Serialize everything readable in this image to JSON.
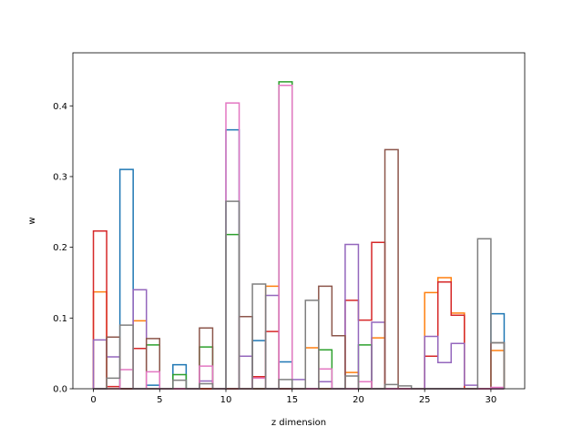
{
  "chart_data": {
    "type": "step-histogram",
    "title": "",
    "xlabel": "z dimension",
    "ylabel": "w",
    "xlim": [
      -1.55,
      32.55
    ],
    "ylim": [
      0,
      0.475
    ],
    "xticks": [
      0,
      5,
      10,
      15,
      20,
      25,
      30
    ],
    "yticks": [
      0.0,
      0.1,
      0.2,
      0.3,
      0.4
    ],
    "grid": false,
    "legend": "none",
    "bin_edges": [
      0,
      1,
      2,
      3,
      4,
      5,
      6,
      7,
      8,
      9,
      10,
      11,
      12,
      13,
      14,
      15,
      16,
      17,
      18,
      19,
      20,
      21,
      22,
      23,
      24,
      25,
      26,
      27,
      28,
      29,
      30,
      31
    ],
    "series": [
      {
        "color": "#1f77b4",
        "values": [
          0,
          0,
          0.31,
          0,
          0.005,
          0,
          0.034,
          0,
          0,
          0,
          0.366,
          0,
          0.068,
          0,
          0.038,
          0,
          0,
          0,
          0,
          0,
          0,
          0,
          0,
          0,
          0,
          0,
          0,
          0,
          0,
          0,
          0.106
        ]
      },
      {
        "color": "#ff7f0e",
        "values": [
          0.137,
          0,
          0,
          0.096,
          0,
          0,
          0,
          0,
          0,
          0,
          0,
          0,
          0,
          0.145,
          0,
          0,
          0.058,
          0,
          0,
          0.023,
          0,
          0.072,
          0,
          0,
          0,
          0.136,
          0.157,
          0.107,
          0,
          0,
          0.054
        ]
      },
      {
        "color": "#2ca02c",
        "values": [
          0,
          0,
          0,
          0,
          0.062,
          0,
          0.02,
          0,
          0.059,
          0,
          0.218,
          0,
          0,
          0,
          0.434,
          0,
          0,
          0.055,
          0,
          0,
          0.062,
          0,
          0,
          0,
          0,
          0,
          0,
          0,
          0,
          0,
          0
        ]
      },
      {
        "color": "#d62728",
        "values": [
          0.223,
          0.003,
          0,
          0.057,
          0,
          0,
          0,
          0,
          0,
          0,
          0,
          0,
          0.017,
          0.081,
          0,
          0,
          0,
          0,
          0,
          0.125,
          0.097,
          0.207,
          0,
          0,
          0,
          0.046,
          0.151,
          0.104,
          0,
          0,
          0
        ]
      },
      {
        "color": "#9467bd",
        "values": [
          0.069,
          0.045,
          0,
          0.14,
          0,
          0,
          0,
          0,
          0.011,
          0,
          0,
          0.046,
          0,
          0.132,
          0,
          0.013,
          0,
          0.01,
          0,
          0.204,
          0,
          0.094,
          0,
          0,
          0,
          0.074,
          0.037,
          0.064,
          0.005,
          0,
          0
        ]
      },
      {
        "color": "#8c564b",
        "values": [
          0,
          0.073,
          0,
          0,
          0.071,
          0,
          0,
          0,
          0.086,
          0,
          0,
          0.102,
          0,
          0,
          0,
          0,
          0,
          0.145,
          0.075,
          0,
          0,
          0,
          0.338,
          0,
          0,
          0,
          0,
          0,
          0,
          0,
          0.065
        ]
      },
      {
        "color": "#e377c2",
        "values": [
          0,
          0,
          0.027,
          0,
          0.024,
          0,
          0,
          0,
          0.032,
          0,
          0.404,
          0,
          0.015,
          0,
          0.429,
          0,
          0,
          0.028,
          0,
          0,
          0.01,
          0,
          0,
          0,
          0,
          0,
          0,
          0,
          0,
          0,
          0.002
        ]
      },
      {
        "color": "#7f7f7f",
        "values": [
          0,
          0.015,
          0.09,
          0,
          0,
          0,
          0.012,
          0,
          0.007,
          0,
          0.265,
          0,
          0.148,
          0,
          0.013,
          0,
          0.125,
          0,
          0,
          0.018,
          0,
          0,
          0.006,
          0.004,
          0,
          0,
          0,
          0,
          0,
          0.212,
          0.065
        ]
      }
    ]
  }
}
